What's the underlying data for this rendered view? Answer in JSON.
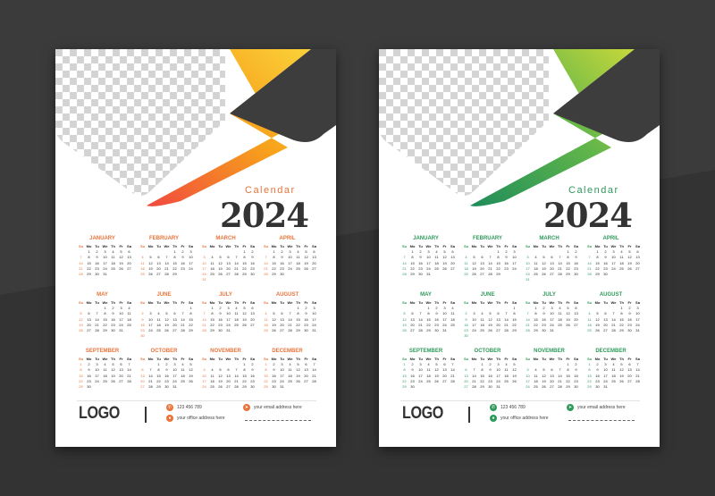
{
  "posters": [
    {
      "accent": "#e8743b",
      "grad": [
        "#f0493f",
        "#f7a21b",
        "#fbd23a"
      ],
      "name": "orange"
    },
    {
      "accent": "#2e9a5b",
      "grad": [
        "#1e8c5a",
        "#62b64a",
        "#c8d83a"
      ],
      "name": "green"
    }
  ],
  "calendar_word": "Calendar",
  "year": "2024",
  "weekdays": [
    "Su",
    "Mo",
    "Tu",
    "We",
    "Th",
    "Fr",
    "Sa"
  ],
  "months": [
    {
      "name": "JANUARY",
      "first": 1,
      "days": 31
    },
    {
      "name": "FEBRUARY",
      "first": 4,
      "days": 29
    },
    {
      "name": "MARCH",
      "first": 5,
      "days": 31
    },
    {
      "name": "APRIL",
      "first": 1,
      "days": 30
    },
    {
      "name": "MAY",
      "first": 3,
      "days": 31
    },
    {
      "name": "JUNE",
      "first": 6,
      "days": 30
    },
    {
      "name": "JULY",
      "first": 1,
      "days": 31
    },
    {
      "name": "AUGUST",
      "first": 4,
      "days": 31
    },
    {
      "name": "SEPTEMBER",
      "first": 0,
      "days": 30
    },
    {
      "name": "OCTOBER",
      "first": 2,
      "days": 31
    },
    {
      "name": "NOVEMBER",
      "first": 5,
      "days": 30
    },
    {
      "name": "DECEMBER",
      "first": 0,
      "days": 31
    }
  ],
  "footer": {
    "logo": "LOGO",
    "phone": "123 456 789",
    "address": "your office address here",
    "email": "your email address here"
  },
  "icons": {
    "phone": "phone-icon",
    "location": "location-pin-icon",
    "email": "send-icon"
  }
}
